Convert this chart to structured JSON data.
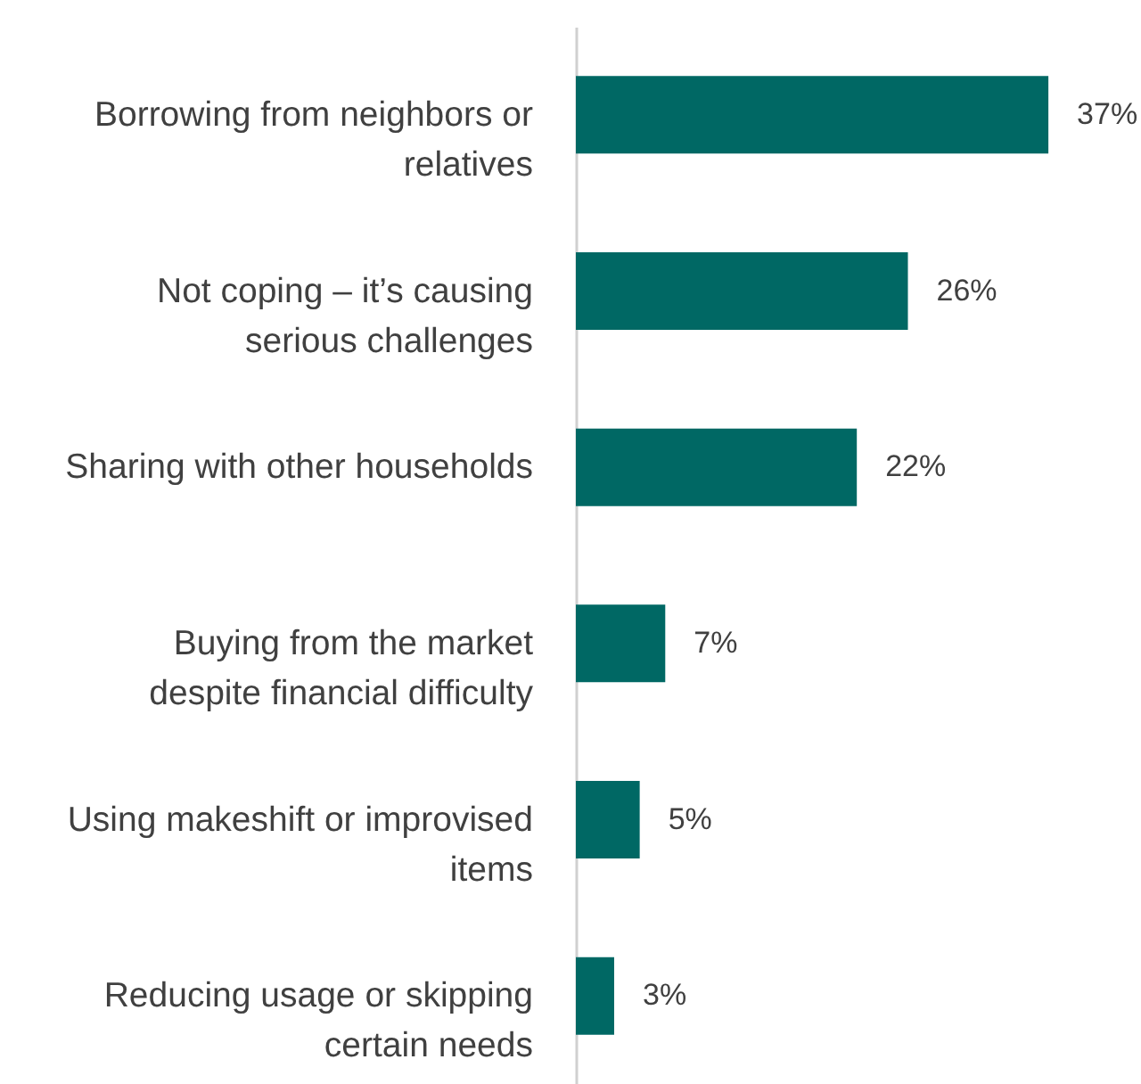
{
  "chart_data": {
    "type": "bar",
    "orientation": "horizontal",
    "data_labels": true,
    "categories": [
      "Borrowing from neighbors or relatives",
      "Not coping – it’s causing serious challenges",
      "Sharing with other households",
      "Buying from the market despite financial difficulty",
      "Using makeshift or improvised items",
      "Reducing usage or skipping certain needs"
    ],
    "values": [
      37,
      26,
      22,
      7,
      5,
      3
    ],
    "value_labels": [
      "37%",
      "26%",
      "22%",
      "7%",
      "5%",
      "3%"
    ],
    "color": "#006864",
    "grid": false
  }
}
